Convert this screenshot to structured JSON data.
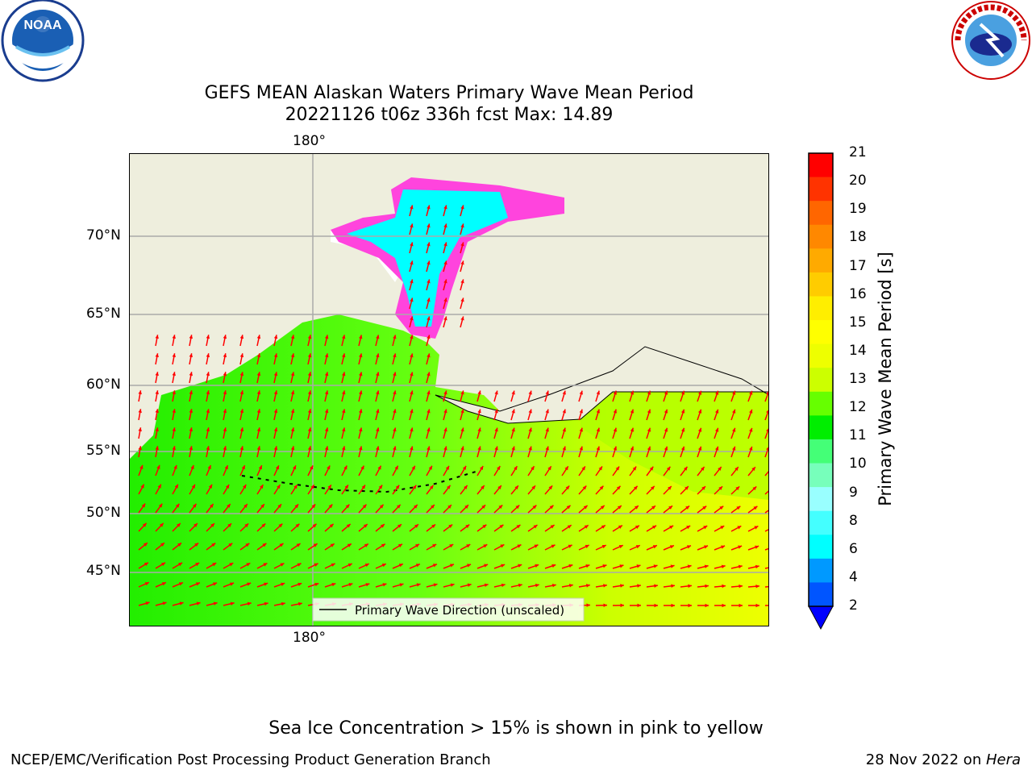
{
  "header": {
    "title_line1": "GEFS MEAN Alaskan Waters Primary Wave Mean Period",
    "title_line2": "20221126 t06z 336h fcst   Max: 14.89"
  },
  "logos": {
    "left": {
      "icon": "noaa-logo-icon",
      "text": "NOAA"
    },
    "right": {
      "icon": "national-weather-service-logo-icon",
      "text": "NATIONAL WEATHER SERVICE"
    }
  },
  "map": {
    "lon_labels": [
      "180°",
      "180°"
    ],
    "lat_labels": [
      "70°N",
      "65°N",
      "60°N",
      "55°N",
      "50°N",
      "45°N"
    ],
    "legend_label": "Primary Wave Direction (unscaled)",
    "colors": {
      "land": "#eeeedd",
      "ocean_green": "#33ff00",
      "ocean_yellow": "#ccff00",
      "ice_cyan": "#00ffff",
      "ice_pink": "#ff44dd",
      "arrow": "#ff0000"
    }
  },
  "colorbar": {
    "label": "Primary Wave Mean Period [s]",
    "ticks": [
      "21",
      "20",
      "19",
      "18",
      "17",
      "16",
      "15",
      "14",
      "13",
      "12",
      "11",
      "10",
      "9",
      "8",
      "6",
      "4",
      "2"
    ],
    "colors": [
      "#ff0000",
      "#ff3300",
      "#ff6600",
      "#ff8800",
      "#ffaa00",
      "#ffcc00",
      "#ffee00",
      "#ffff00",
      "#eeff00",
      "#ccff00",
      "#66ff00",
      "#00ee00",
      "#44ff77",
      "#77ffbb",
      "#99ffff",
      "#44ffff",
      "#00ffff",
      "#0099ff",
      "#0055ff"
    ]
  },
  "notes": {
    "ice": "Sea Ice Concentration > 15% is shown in pink to yellow"
  },
  "footer": {
    "left": "NCEP/EMC/Verification Post Processing Product Generation Branch",
    "right_date": "28 Nov 2022 on ",
    "right_host": "Hera"
  }
}
